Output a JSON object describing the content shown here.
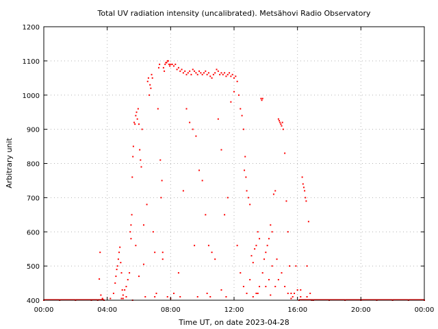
{
  "chart_data": {
    "type": "scatter",
    "title": "Total UV radiation intensity (uncalibrated). Metsähovi Radio Observatory",
    "xlabel": "Time UT, on date 2023-04-28",
    "ylabel": "Arbitrary unit",
    "xlim": [
      0,
      24
    ],
    "ylim": [
      400,
      1200
    ],
    "x_tick_values": [
      0,
      4,
      8,
      12,
      16,
      20,
      24
    ],
    "x_tick_labels": [
      "00:00",
      "04:00",
      "08:00",
      "12:00",
      "16:00",
      "20:00",
      "00:00"
    ],
    "y_tick_values": [
      400,
      500,
      600,
      700,
      800,
      900,
      1000,
      1100,
      1200
    ],
    "y_tick_labels": [
      "400",
      "500",
      "600",
      "700",
      "800",
      "900",
      "1000",
      "1100",
      "1200"
    ],
    "grid": true,
    "legend": "none",
    "marker_color": "#ff0000",
    "series": [
      {
        "points": [
          [
            0.0,
            400
          ],
          [
            1.0,
            400
          ],
          [
            2.0,
            400
          ],
          [
            3.0,
            400
          ],
          [
            3.4,
            400
          ],
          [
            3.5,
            462
          ],
          [
            3.55,
            540
          ],
          [
            3.6,
            415
          ],
          [
            3.7,
            405
          ],
          [
            3.8,
            400
          ],
          [
            4.2,
            405
          ],
          [
            4.4,
            420
          ],
          [
            4.5,
            450
          ],
          [
            4.55,
            470
          ],
          [
            4.6,
            490
          ],
          [
            4.65,
            500
          ],
          [
            4.7,
            520
          ],
          [
            4.75,
            540
          ],
          [
            4.8,
            555
          ],
          [
            4.85,
            510
          ],
          [
            4.9,
            480
          ],
          [
            4.95,
            430
          ],
          [
            5.0,
            415
          ],
          [
            5.1,
            430
          ],
          [
            5.2,
            440
          ],
          [
            5.3,
            460
          ],
          [
            5.4,
            480
          ],
          [
            5.45,
            600
          ],
          [
            5.5,
            620
          ],
          [
            5.55,
            650
          ],
          [
            5.58,
            760
          ],
          [
            5.62,
            820
          ],
          [
            5.65,
            850
          ],
          [
            5.7,
            920
          ],
          [
            5.75,
            915
          ],
          [
            5.8,
            940
          ],
          [
            5.85,
            950
          ],
          [
            5.9,
            930
          ],
          [
            5.95,
            960
          ],
          [
            6.0,
            915
          ],
          [
            6.05,
            840
          ],
          [
            6.1,
            810
          ],
          [
            6.15,
            790
          ],
          [
            6.2,
            900
          ],
          [
            6.3,
            620
          ],
          [
            6.4,
            410
          ],
          [
            6.5,
            680
          ],
          [
            6.55,
            1040
          ],
          [
            6.6,
            1050
          ],
          [
            6.65,
            1000
          ],
          [
            6.7,
            1030
          ],
          [
            6.75,
            1020
          ],
          [
            6.8,
            1060
          ],
          [
            6.85,
            1050
          ],
          [
            6.9,
            600
          ],
          [
            7.0,
            410
          ],
          [
            7.1,
            420
          ],
          [
            7.2,
            960
          ],
          [
            7.25,
            1080
          ],
          [
            7.3,
            1090
          ],
          [
            7.35,
            810
          ],
          [
            7.4,
            700
          ],
          [
            7.45,
            750
          ],
          [
            7.5,
            540
          ],
          [
            7.55,
            1080
          ],
          [
            7.6,
            1070
          ],
          [
            7.65,
            1090
          ],
          [
            7.7,
            1095
          ],
          [
            7.75,
            1095
          ],
          [
            7.8,
            1100
          ],
          [
            7.85,
            1100
          ],
          [
            7.9,
            1090
          ],
          [
            7.95,
            1085
          ],
          [
            8.0,
            1090
          ],
          [
            8.1,
            1090
          ],
          [
            8.2,
            1085
          ],
          [
            8.3,
            1090
          ],
          [
            8.4,
            1075
          ],
          [
            8.5,
            1080
          ],
          [
            8.6,
            1070
          ],
          [
            8.7,
            1075
          ],
          [
            8.8,
            1065
          ],
          [
            8.9,
            1070
          ],
          [
            9.0,
            1060
          ],
          [
            9.1,
            1065
          ],
          [
            9.2,
            1070
          ],
          [
            9.3,
            1060
          ],
          [
            9.4,
            1075
          ],
          [
            9.5,
            1070
          ],
          [
            9.6,
            1065
          ],
          [
            9.7,
            1060
          ],
          [
            9.8,
            1070
          ],
          [
            9.9,
            1065
          ],
          [
            10.0,
            1060
          ],
          [
            10.1,
            1065
          ],
          [
            10.2,
            1070
          ],
          [
            10.3,
            1060
          ],
          [
            10.4,
            1065
          ],
          [
            10.5,
            1055
          ],
          [
            10.6,
            1050
          ],
          [
            10.7,
            1060
          ],
          [
            10.8,
            1065
          ],
          [
            10.9,
            1075
          ],
          [
            11.0,
            1070
          ],
          [
            11.1,
            1060
          ],
          [
            11.2,
            1065
          ],
          [
            11.3,
            1060
          ],
          [
            11.4,
            1065
          ],
          [
            11.5,
            1055
          ],
          [
            11.6,
            1060
          ],
          [
            11.7,
            1065
          ],
          [
            11.8,
            1055
          ],
          [
            11.9,
            1060
          ],
          [
            12.0,
            1050
          ],
          [
            12.1,
            1055
          ],
          [
            12.2,
            1040
          ],
          [
            12.3,
            1000
          ],
          [
            12.4,
            960
          ],
          [
            12.5,
            940
          ],
          [
            12.6,
            900
          ],
          [
            12.65,
            780
          ],
          [
            12.7,
            820
          ],
          [
            12.75,
            760
          ],
          [
            12.8,
            720
          ],
          [
            12.9,
            700
          ],
          [
            13.0,
            680
          ],
          [
            13.1,
            530
          ],
          [
            13.2,
            510
          ],
          [
            13.3,
            550
          ],
          [
            13.4,
            560
          ],
          [
            13.5,
            600
          ],
          [
            13.6,
            580
          ],
          [
            13.7,
            990
          ],
          [
            13.75,
            985
          ],
          [
            13.8,
            990
          ],
          [
            13.9,
            520
          ],
          [
            14.0,
            540
          ],
          [
            14.1,
            560
          ],
          [
            14.2,
            580
          ],
          [
            14.3,
            620
          ],
          [
            14.4,
            600
          ],
          [
            14.5,
            710
          ],
          [
            14.6,
            720
          ],
          [
            14.7,
            520
          ],
          [
            14.8,
            930
          ],
          [
            14.85,
            925
          ],
          [
            14.9,
            920
          ],
          [
            14.95,
            915
          ],
          [
            15.0,
            910
          ],
          [
            15.05,
            920
          ],
          [
            15.1,
            900
          ],
          [
            15.2,
            830
          ],
          [
            15.3,
            690
          ],
          [
            15.4,
            600
          ],
          [
            15.5,
            500
          ],
          [
            15.6,
            420
          ],
          [
            15.7,
            410
          ],
          [
            15.8,
            420
          ],
          [
            15.9,
            500
          ],
          [
            16.0,
            430
          ],
          [
            16.1,
            400
          ],
          [
            16.2,
            410
          ],
          [
            16.3,
            760
          ],
          [
            16.35,
            740
          ],
          [
            16.4,
            730
          ],
          [
            16.45,
            720
          ],
          [
            16.5,
            700
          ],
          [
            16.55,
            690
          ],
          [
            16.6,
            500
          ],
          [
            16.7,
            630
          ],
          [
            16.8,
            420
          ],
          [
            16.9,
            400
          ],
          [
            17.0,
            400
          ],
          [
            18.0,
            400
          ],
          [
            19.0,
            400
          ],
          [
            20.0,
            400
          ],
          [
            21.0,
            400
          ],
          [
            22.0,
            400
          ],
          [
            23.0,
            400
          ],
          [
            24.0,
            400
          ],
          [
            7.0,
            540
          ],
          [
            7.5,
            520
          ],
          [
            8.2,
            420
          ],
          [
            8.5,
            480
          ],
          [
            9.0,
            960
          ],
          [
            9.2,
            920
          ],
          [
            9.4,
            900
          ],
          [
            9.6,
            880
          ],
          [
            9.8,
            780
          ],
          [
            10.0,
            750
          ],
          [
            10.2,
            650
          ],
          [
            10.4,
            560
          ],
          [
            10.6,
            540
          ],
          [
            10.8,
            520
          ],
          [
            11.0,
            930
          ],
          [
            11.2,
            840
          ],
          [
            11.4,
            650
          ],
          [
            11.6,
            700
          ],
          [
            11.8,
            980
          ],
          [
            12.0,
            1010
          ],
          [
            12.2,
            560
          ],
          [
            12.4,
            480
          ],
          [
            12.6,
            440
          ],
          [
            12.8,
            420
          ],
          [
            13.0,
            460
          ],
          [
            13.2,
            410
          ],
          [
            13.4,
            420
          ],
          [
            13.6,
            440
          ],
          [
            13.8,
            480
          ],
          [
            14.0,
            440
          ],
          [
            14.2,
            460
          ],
          [
            14.4,
            500
          ],
          [
            14.6,
            440
          ],
          [
            14.8,
            460
          ],
          [
            15.0,
            480
          ],
          [
            15.2,
            440
          ],
          [
            15.4,
            420
          ],
          [
            8.8,
            720
          ],
          [
            9.5,
            560
          ],
          [
            10.5,
            410
          ],
          [
            6.0,
            470
          ],
          [
            6.3,
            505
          ],
          [
            5.8,
            560
          ],
          [
            5.5,
            580
          ],
          [
            5.2,
            410
          ],
          [
            4.9,
            405
          ],
          [
            5.0,
            405
          ],
          [
            7.8,
            410
          ],
          [
            8.0,
            405
          ],
          [
            8.6,
            410
          ],
          [
            9.7,
            410
          ],
          [
            10.3,
            420
          ],
          [
            11.2,
            430
          ],
          [
            11.5,
            410
          ],
          [
            13.5,
            420
          ],
          [
            14.3,
            415
          ],
          [
            15.6,
            405
          ],
          [
            16.2,
            430
          ],
          [
            16.6,
            410
          ],
          [
            5.6,
            400
          ]
        ]
      }
    ]
  }
}
